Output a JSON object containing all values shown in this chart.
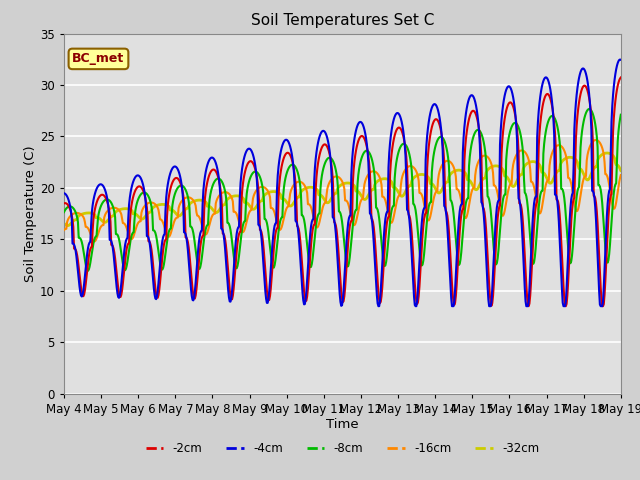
{
  "title": "Soil Temperatures Set C",
  "xlabel": "Time",
  "ylabel": "Soil Temperature (C)",
  "ylim": [
    0,
    35
  ],
  "annotation_text": "BC_met",
  "legend_labels": [
    "-2cm",
    "-4cm",
    "-8cm",
    "-16cm",
    "-32cm"
  ],
  "legend_colors": [
    "#dd0000",
    "#0000dd",
    "#00bb00",
    "#ff8800",
    "#cccc00"
  ],
  "tick_dates": [
    "May 4",
    "May 5",
    "May 6",
    "May 7",
    "May 8",
    "May 9",
    "May 10",
    "May 11",
    "May 12",
    "May 13",
    "May 14",
    "May 15",
    "May 16",
    "May 17",
    "May 18",
    "May 19"
  ],
  "num_days": 15,
  "samples_per_day": 48,
  "fig_facecolor": "#d0d0d0",
  "ax_facecolor": "#e0e0e0",
  "grid_color": "white"
}
